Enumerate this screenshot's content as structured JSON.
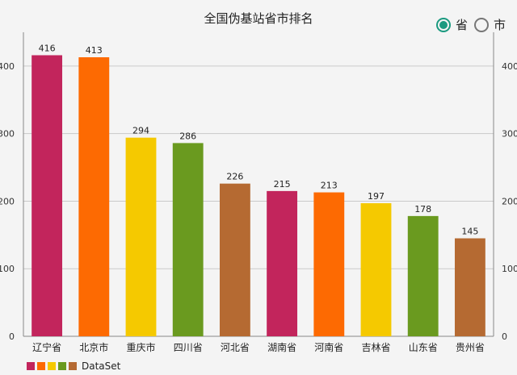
{
  "header": {
    "title": "全国伪基站省市排名",
    "radios": [
      {
        "label": "省",
        "checked": true
      },
      {
        "label": "市",
        "checked": false
      }
    ]
  },
  "legend": {
    "label": "DataSet",
    "colors": [
      "#c2255c",
      "#fd6a02",
      "#f5c900",
      "#6a9a1f",
      "#b56a32"
    ]
  },
  "chart_data": {
    "type": "bar",
    "title": "全国伪基站省市排名",
    "categories": [
      "辽宁省",
      "北京市",
      "重庆市",
      "四川省",
      "河北省",
      "湖南省",
      "河南省",
      "吉林省",
      "山东省",
      "贵州省"
    ],
    "series": [
      {
        "name": "DataSet",
        "values": [
          416,
          413,
          294,
          286,
          226,
          215,
          213,
          197,
          178,
          145
        ]
      }
    ],
    "colors": [
      "#c2255c",
      "#fd6a02",
      "#f5c900",
      "#6a9a1f",
      "#b56a32"
    ],
    "ylim": [
      0,
      450
    ],
    "yticks": [
      0,
      100,
      200,
      300,
      400
    ],
    "grid": true,
    "legend_position": "bottom-left",
    "data_labels": true
  }
}
